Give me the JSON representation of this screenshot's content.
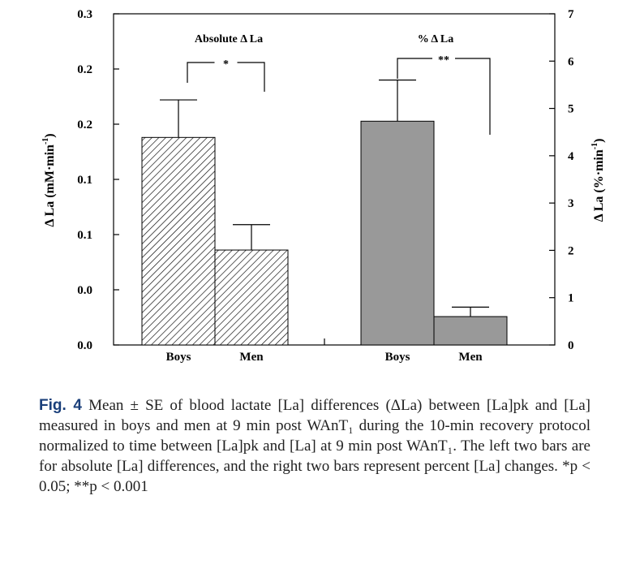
{
  "chart_data": {
    "type": "bar",
    "left_axis": {
      "label_main": "Δ La (mM·min",
      "label_sup": "-1",
      "label_end": ")",
      "ticks": [
        {
          "value": 0.0,
          "label": "0.0"
        },
        {
          "value": 0.05,
          "label": "0.0"
        },
        {
          "value": 0.1,
          "label": "0.1"
        },
        {
          "value": 0.15,
          "label": "0.1"
        },
        {
          "value": 0.2,
          "label": "0.2"
        },
        {
          "value": 0.25,
          "label": "0.2"
        },
        {
          "value": 0.3,
          "label": "0.3"
        }
      ],
      "ylim": [
        0,
        0.3
      ]
    },
    "right_axis": {
      "label_main": "Δ La (%·min",
      "label_sup": "-1",
      "label_end": ")",
      "ticks": [
        {
          "value": 0,
          "label": "0"
        },
        {
          "value": 1,
          "label": "1"
        },
        {
          "value": 2,
          "label": "2"
        },
        {
          "value": 3,
          "label": "3"
        },
        {
          "value": 4,
          "label": "4"
        },
        {
          "value": 5,
          "label": "5"
        },
        {
          "value": 6,
          "label": "6"
        },
        {
          "value": 7,
          "label": "7"
        }
      ],
      "ylim": [
        0,
        7
      ]
    },
    "panels": [
      {
        "title": "Absolute Δ La",
        "axis": "left",
        "fill": "hatched",
        "categories": [
          "Boys",
          "Men"
        ],
        "values": [
          0.188,
          0.086
        ],
        "errors": [
          0.034,
          0.023
        ],
        "significance": "*"
      },
      {
        "title": "% Δ La",
        "axis": "right",
        "fill": "#999999",
        "categories": [
          "Boys",
          "Men"
        ],
        "values": [
          4.73,
          0.6
        ],
        "errors": [
          0.87,
          0.2
        ],
        "significance": "**"
      }
    ]
  },
  "caption": {
    "label": "Fig. 4",
    "text": " Mean ± SE of blood lactate [La] differences (ΔLa) between [La]pk and [La] measured in boys and men at 9 min post WAnT₁ during the 10-min recovery protocol normalized to time between [La]pk and [La] at 9 min post WAnT₁. The left two bars are for absolute [La] differences, and the right two bars represent percent [La] changes. *p < 0.05; **p < 0.001"
  }
}
